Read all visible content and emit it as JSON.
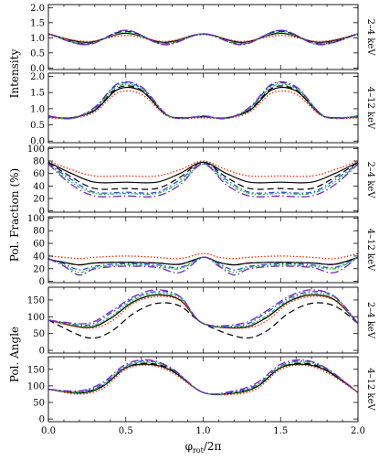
{
  "chart_data": {
    "type": "line",
    "x_range": [
      0,
      2
    ],
    "x_ticks": [
      "0.0",
      "0.5",
      "1.0",
      "1.5",
      "2.0"
    ],
    "xlabel": "φrot/2π",
    "xlabel_main": "φ",
    "xlabel_sub": "rot",
    "xlabel_tail": "/2π",
    "group_labels": [
      "Intensity",
      "Pol. Fraction (%)",
      "Pol. Angle"
    ],
    "energy_labels": [
      "2–4 keV",
      "4–12 keV"
    ],
    "line_styles": [
      {
        "color": "#000000",
        "dash": ""
      },
      {
        "color": "#000000",
        "dash": "7,4"
      },
      {
        "color": "#ff2a00",
        "dash": "1.5,2"
      },
      {
        "color": "#1f4fe0",
        "dash": "6,3,1.5,3"
      },
      {
        "color": "#1fbf3a",
        "dash": "4,2,1.5,2,1.5,2"
      },
      {
        "color": "#7a1fd0",
        "dash": "9,3,1.5,3"
      }
    ],
    "panels": [
      {
        "group": 0,
        "energy": 0,
        "ylim": [
          -0.05,
          2.1
        ],
        "yticks": [
          "0.0",
          "0.5",
          "1.0",
          "1.5",
          "2.0"
        ],
        "ytick_values": [
          0,
          0.5,
          1,
          1.5,
          2
        ],
        "x": [
          0,
          0.25,
          0.5,
          0.75,
          1.0,
          1.25,
          1.5,
          1.75,
          2.0
        ],
        "series": [
          [
            1.13,
            0.85,
            1.15,
            0.85,
            1.13,
            0.85,
            1.15,
            0.85,
            1.13
          ],
          [
            1.13,
            0.8,
            1.22,
            0.8,
            1.13,
            0.8,
            1.22,
            0.8,
            1.13
          ],
          [
            1.1,
            0.88,
            1.08,
            0.88,
            1.1,
            0.88,
            1.08,
            0.88,
            1.1
          ],
          [
            1.13,
            0.78,
            1.25,
            0.78,
            1.13,
            0.78,
            1.25,
            0.78,
            1.13
          ],
          [
            1.13,
            0.8,
            1.18,
            0.8,
            1.13,
            0.8,
            1.18,
            0.8,
            1.13
          ],
          [
            1.13,
            0.77,
            1.25,
            0.77,
            1.13,
            0.77,
            1.25,
            0.77,
            1.13
          ]
        ]
      },
      {
        "group": 0,
        "energy": 1,
        "ylim": [
          -0.05,
          2.1
        ],
        "yticks": [
          "0.0",
          "0.5",
          "1.0",
          "1.5",
          "2.0"
        ],
        "ytick_values": [
          0,
          0.5,
          1,
          1.5,
          2
        ],
        "x": [
          0,
          0.15,
          0.3,
          0.45,
          0.6,
          0.75,
          0.85,
          1.0,
          1.15,
          1.3,
          1.45,
          1.6,
          1.75,
          1.85,
          2.0
        ],
        "series": [
          [
            0.75,
            0.72,
            0.95,
            1.6,
            1.55,
            0.85,
            0.72,
            0.75,
            0.72,
            0.95,
            1.6,
            1.55,
            0.85,
            0.72,
            0.75
          ],
          [
            0.75,
            0.72,
            0.97,
            1.65,
            1.58,
            0.85,
            0.72,
            0.75,
            0.72,
            0.97,
            1.65,
            1.58,
            0.85,
            0.72,
            0.75
          ],
          [
            0.72,
            0.7,
            0.9,
            1.5,
            1.45,
            0.82,
            0.7,
            0.72,
            0.7,
            0.9,
            1.5,
            1.45,
            0.82,
            0.7,
            0.72
          ],
          [
            0.77,
            0.7,
            1.02,
            1.75,
            1.65,
            0.88,
            0.7,
            0.77,
            0.7,
            1.02,
            1.75,
            1.65,
            0.88,
            0.7,
            0.77
          ],
          [
            0.77,
            0.7,
            1.0,
            1.7,
            1.62,
            0.86,
            0.7,
            0.77,
            0.7,
            1.0,
            1.7,
            1.62,
            0.86,
            0.7,
            0.77
          ],
          [
            0.78,
            0.7,
            1.05,
            1.78,
            1.68,
            0.88,
            0.7,
            0.78,
            0.7,
            1.05,
            1.78,
            1.68,
            0.88,
            0.7,
            0.78
          ]
        ]
      },
      {
        "group": 1,
        "energy": 0,
        "ylim": [
          -2,
          102
        ],
        "yticks": [
          "0",
          "20",
          "40",
          "60",
          "80",
          "100"
        ],
        "ytick_values": [
          0,
          20,
          40,
          60,
          80,
          100
        ],
        "x": [
          0,
          0.15,
          0.3,
          0.5,
          0.7,
          0.85,
          1.0,
          1.15,
          1.3,
          1.5,
          1.7,
          1.85,
          2.0
        ],
        "series": [
          [
            78,
            60,
            46,
            46,
            46,
            60,
            78,
            60,
            46,
            46,
            46,
            60,
            78
          ],
          [
            78,
            54,
            36,
            36,
            36,
            54,
            78,
            54,
            36,
            36,
            36,
            54,
            78
          ],
          [
            80,
            66,
            56,
            56,
            56,
            66,
            80,
            66,
            56,
            56,
            56,
            66,
            80
          ],
          [
            76,
            50,
            30,
            30,
            30,
            50,
            76,
            50,
            30,
            30,
            30,
            50,
            76
          ],
          [
            75,
            46,
            28,
            28,
            28,
            46,
            75,
            46,
            28,
            28,
            28,
            46,
            75
          ],
          [
            75,
            42,
            24,
            24,
            24,
            42,
            75,
            42,
            24,
            24,
            24,
            42,
            75
          ]
        ]
      },
      {
        "group": 1,
        "energy": 1,
        "ylim": [
          -2,
          102
        ],
        "yticks": [
          "0",
          "20",
          "40",
          "60",
          "80",
          "100"
        ],
        "ytick_values": [
          0,
          20,
          40,
          60,
          80,
          100
        ],
        "x": [
          0,
          0.1,
          0.2,
          0.3,
          0.5,
          0.7,
          0.85,
          1.0,
          1.1,
          1.2,
          1.3,
          1.5,
          1.7,
          1.85,
          2.0
        ],
        "series": [
          [
            35,
            30,
            26,
            29,
            30,
            29,
            27,
            38,
            30,
            26,
            29,
            30,
            29,
            27,
            38
          ],
          [
            35,
            30,
            26,
            29,
            30,
            29,
            27,
            38,
            30,
            26,
            29,
            30,
            29,
            27,
            38
          ],
          [
            40,
            38,
            36,
            38,
            40,
            38,
            36,
            44,
            38,
            36,
            38,
            40,
            38,
            36,
            44
          ],
          [
            36,
            28,
            18,
            24,
            28,
            26,
            22,
            38,
            28,
            18,
            24,
            28,
            26,
            22,
            38
          ],
          [
            36,
            26,
            14,
            22,
            26,
            24,
            20,
            38,
            26,
            14,
            22,
            26,
            24,
            20,
            38
          ],
          [
            36,
            24,
            10,
            20,
            24,
            22,
            14,
            38,
            24,
            10,
            20,
            24,
            22,
            14,
            38
          ]
        ]
      },
      {
        "group": 2,
        "energy": 0,
        "ylim": [
          -8,
          188
        ],
        "yticks": [
          "0",
          "50",
          "100",
          "150"
        ],
        "ytick_values": [
          0,
          50,
          100,
          150
        ],
        "x": [
          0,
          0.25,
          0.4,
          0.55,
          0.7,
          0.85,
          1.0,
          1.25,
          1.4,
          1.55,
          1.7,
          1.85,
          2.0
        ],
        "series": [
          [
            90,
            68,
            95,
            145,
            165,
            150,
            80,
            68,
            95,
            145,
            165,
            150,
            80
          ],
          [
            90,
            38,
            55,
            110,
            140,
            132,
            80,
            38,
            55,
            110,
            140,
            132,
            80
          ],
          [
            90,
            66,
            85,
            140,
            160,
            148,
            80,
            66,
            85,
            140,
            160,
            148,
            80
          ],
          [
            90,
            75,
            110,
            155,
            175,
            160,
            80,
            75,
            110,
            155,
            175,
            160,
            80
          ],
          [
            90,
            72,
            100,
            150,
            170,
            155,
            80,
            72,
            100,
            150,
            170,
            155,
            80
          ],
          [
            90,
            80,
            115,
            160,
            180,
            160,
            80,
            80,
            115,
            160,
            180,
            160,
            80
          ]
        ]
      },
      {
        "group": 2,
        "energy": 1,
        "ylim": [
          -8,
          188
        ],
        "yticks": [
          "0",
          "50",
          "100",
          "150"
        ],
        "ytick_values": [
          0,
          50,
          100,
          150
        ],
        "x": [
          0,
          0.2,
          0.35,
          0.5,
          0.65,
          0.8,
          1.0,
          1.2,
          1.35,
          1.5,
          1.65,
          1.8,
          2.0
        ],
        "series": [
          [
            90,
            78,
            98,
            155,
            165,
            145,
            80,
            78,
            98,
            155,
            165,
            145,
            80
          ],
          [
            90,
            80,
            100,
            155,
            168,
            148,
            80,
            80,
            100,
            155,
            168,
            148,
            80
          ],
          [
            90,
            75,
            92,
            150,
            162,
            140,
            80,
            75,
            92,
            150,
            162,
            140,
            80
          ],
          [
            90,
            82,
            105,
            160,
            175,
            150,
            80,
            82,
            105,
            160,
            175,
            150,
            80
          ],
          [
            90,
            80,
            102,
            158,
            172,
            150,
            80,
            80,
            102,
            158,
            172,
            150,
            80
          ],
          [
            90,
            85,
            110,
            165,
            178,
            152,
            80,
            85,
            110,
            165,
            178,
            152,
            80
          ]
        ]
      }
    ]
  }
}
